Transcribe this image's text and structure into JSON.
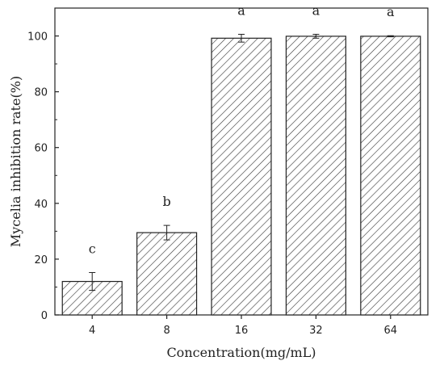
{
  "chart_data": {
    "type": "bar",
    "xlabel": "Concentration(mg/mL)",
    "ylabel": "Mycelia inhibition rate(%)",
    "ylim": [
      0,
      110
    ],
    "yticks": [
      0,
      20,
      40,
      60,
      80,
      100
    ],
    "categories": [
      "4",
      "8",
      "16",
      "32",
      "64"
    ],
    "values": [
      12.0,
      29.5,
      99.2,
      99.9,
      99.9
    ],
    "errors": [
      3.2,
      2.6,
      1.4,
      0.7,
      0.2
    ],
    "significance": [
      "c",
      "b",
      "a",
      "a",
      "a"
    ],
    "bar_fill": "hatched",
    "bar_color": "#333333",
    "grid": false
  }
}
